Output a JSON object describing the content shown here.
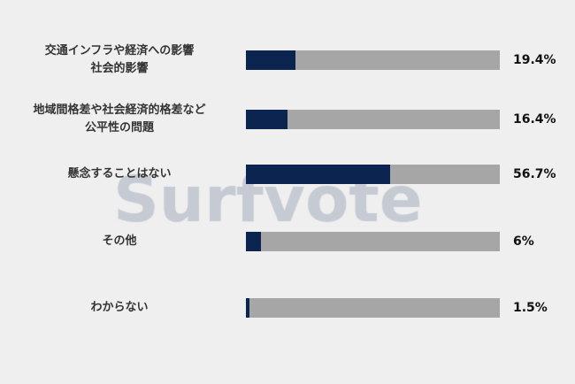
{
  "watermark": "Surfvote",
  "colors": {
    "bar": "#0b2550",
    "track": "#a6a6a6",
    "background": "#efefef"
  },
  "chart_data": {
    "type": "bar",
    "orientation": "horizontal",
    "xlim": [
      0,
      100
    ],
    "grid": false,
    "categories": [
      [
        "交通インフラや経済への影響",
        "社会的影響"
      ],
      [
        "地域間格差や社会経済的格差など",
        "公平性の問題"
      ],
      [
        "懸念することはない"
      ],
      [
        "その他"
      ],
      [
        "わからない"
      ]
    ],
    "values": [
      19.4,
      16.4,
      56.7,
      6,
      1.5
    ],
    "value_labels": [
      "19.4%",
      "16.4%",
      "56.7%",
      "6%",
      "1.5%"
    ]
  }
}
